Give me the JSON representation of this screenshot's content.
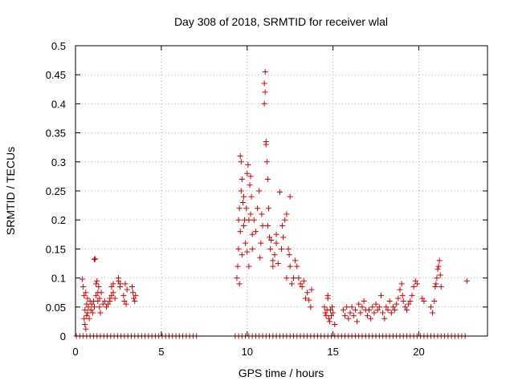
{
  "chart_data": {
    "type": "scatter",
    "title": "Day 308 of 2018, SRMTID for receiver wlal",
    "xlabel": "GPS time / hours",
    "ylabel": "SRMTID / TECUs",
    "xlim": [
      0,
      24
    ],
    "ylim": [
      0,
      0.5
    ],
    "xticks": [
      0,
      5,
      10,
      15,
      20
    ],
    "xtick_labels": [
      "0",
      "5",
      "10",
      "15",
      "20"
    ],
    "yticks": [
      0,
      0.05,
      0.1,
      0.15,
      0.2,
      0.25,
      0.3,
      0.35,
      0.4,
      0.45,
      0.5
    ],
    "ytick_labels": [
      "0",
      "0.05",
      "0.1",
      "0.15",
      "0.2",
      "0.25",
      "0.3",
      "0.35",
      "0.4",
      "0.45",
      "0.5"
    ],
    "grid": true,
    "marker": "+",
    "marker_color": "#dd0000",
    "series": [
      {
        "name": "SRMTID",
        "points": [
          [
            0.4,
            0.098
          ],
          [
            0.45,
            0.085
          ],
          [
            0.5,
            0.07
          ],
          [
            0.5,
            0.03
          ],
          [
            0.55,
            0.045
          ],
          [
            0.55,
            0.02
          ],
          [
            0.6,
            0.075
          ],
          [
            0.6,
            0.012
          ],
          [
            0.65,
            0.055
          ],
          [
            0.65,
            0.035
          ],
          [
            0.7,
            0.04
          ],
          [
            0.7,
            0.065
          ],
          [
            0.75,
            0.05
          ],
          [
            0.8,
            0.03
          ],
          [
            0.85,
            0.06
          ],
          [
            0.9,
            0.045
          ],
          [
            0.95,
            0.055
          ],
          [
            1.0,
            0.04
          ],
          [
            1.05,
            0.06
          ],
          [
            1.1,
            0.05
          ],
          [
            1.1,
            0.132
          ],
          [
            1.15,
            0.133
          ],
          [
            1.2,
            0.09
          ],
          [
            1.2,
            0.07
          ],
          [
            1.25,
            0.095
          ],
          [
            1.3,
            0.075
          ],
          [
            1.3,
            0.06
          ],
          [
            1.35,
            0.085
          ],
          [
            1.4,
            0.05
          ],
          [
            1.4,
            0.065
          ],
          [
            1.45,
            0.04
          ],
          [
            1.5,
            0.075
          ],
          [
            1.6,
            0.055
          ],
          [
            1.7,
            0.06
          ],
          [
            1.8,
            0.05
          ],
          [
            1.9,
            0.055
          ],
          [
            2.0,
            0.065
          ],
          [
            2.0,
            0.06
          ],
          [
            2.1,
            0.085
          ],
          [
            2.1,
            0.07
          ],
          [
            2.2,
            0.09
          ],
          [
            2.2,
            0.075
          ],
          [
            2.3,
            0.065
          ],
          [
            2.5,
            0.1
          ],
          [
            2.5,
            0.095
          ],
          [
            2.6,
            0.085
          ],
          [
            2.6,
            0.09
          ],
          [
            2.8,
            0.07
          ],
          [
            2.85,
            0.06
          ],
          [
            2.9,
            0.09
          ],
          [
            2.95,
            0.055
          ],
          [
            3.0,
            0.08
          ],
          [
            3.3,
            0.085
          ],
          [
            3.35,
            0.075
          ],
          [
            3.4,
            0.065
          ],
          [
            3.45,
            0.06
          ],
          [
            3.5,
            0.07
          ],
          [
            9.4,
            0.1
          ],
          [
            9.45,
            0.12
          ],
          [
            9.5,
            0.15
          ],
          [
            9.5,
            0.2
          ],
          [
            9.55,
            0.22
          ],
          [
            9.55,
            0.09
          ],
          [
            9.6,
            0.31
          ],
          [
            9.6,
            0.18
          ],
          [
            9.65,
            0.25
          ],
          [
            9.65,
            0.3
          ],
          [
            9.7,
            0.27
          ],
          [
            9.7,
            0.14
          ],
          [
            9.75,
            0.23
          ],
          [
            9.8,
            0.24
          ],
          [
            9.8,
            0.19
          ],
          [
            9.85,
            0.2
          ],
          [
            9.9,
            0.16
          ],
          [
            9.95,
            0.22
          ],
          [
            10.0,
            0.145
          ],
          [
            10.0,
            0.28
          ],
          [
            10.05,
            0.295
          ],
          [
            10.1,
            0.12
          ],
          [
            10.1,
            0.2
          ],
          [
            10.15,
            0.26
          ],
          [
            10.2,
            0.275
          ],
          [
            10.2,
            0.21
          ],
          [
            10.25,
            0.24
          ],
          [
            10.3,
            0.15
          ],
          [
            10.3,
            0.175
          ],
          [
            10.4,
            0.2
          ],
          [
            10.5,
            0.18
          ],
          [
            10.6,
            0.22
          ],
          [
            10.7,
            0.25
          ],
          [
            10.75,
            0.135
          ],
          [
            10.8,
            0.16
          ],
          [
            10.85,
            0.21
          ],
          [
            10.9,
            0.19
          ],
          [
            11.0,
            0.435
          ],
          [
            11.0,
            0.4
          ],
          [
            11.05,
            0.42
          ],
          [
            11.05,
            0.455
          ],
          [
            11.1,
            0.335
          ],
          [
            11.1,
            0.33
          ],
          [
            11.15,
            0.3
          ],
          [
            11.2,
            0.27
          ],
          [
            11.2,
            0.19
          ],
          [
            11.25,
            0.22
          ],
          [
            11.3,
            0.17
          ],
          [
            11.35,
            0.15
          ],
          [
            11.4,
            0.165
          ],
          [
            11.5,
            0.13
          ],
          [
            11.5,
            0.12
          ],
          [
            11.6,
            0.14
          ],
          [
            11.7,
            0.16
          ],
          [
            11.7,
            0.175
          ],
          [
            11.8,
            0.125
          ],
          [
            11.9,
            0.248
          ],
          [
            12.0,
            0.15
          ],
          [
            12.05,
            0.19
          ],
          [
            12.1,
            0.17
          ],
          [
            12.2,
            0.2
          ],
          [
            12.3,
            0.21
          ],
          [
            12.3,
            0.1
          ],
          [
            12.4,
            0.15
          ],
          [
            12.45,
            0.14
          ],
          [
            12.5,
            0.24
          ],
          [
            12.5,
            0.12
          ],
          [
            12.6,
            0.09
          ],
          [
            12.7,
            0.1
          ],
          [
            12.8,
            0.13
          ],
          [
            12.9,
            0.12
          ],
          [
            13.0,
            0.1
          ],
          [
            13.1,
            0.09
          ],
          [
            13.2,
            0.085
          ],
          [
            13.3,
            0.095
          ],
          [
            13.4,
            0.065
          ],
          [
            13.5,
            0.075
          ],
          [
            13.6,
            0.062
          ],
          [
            13.7,
            0.05
          ],
          [
            13.75,
            0.08
          ],
          [
            14.5,
            0.05
          ],
          [
            14.55,
            0.04
          ],
          [
            14.6,
            0.035
          ],
          [
            14.65,
            0.045
          ],
          [
            14.7,
            0.065
          ],
          [
            14.7,
            0.07
          ],
          [
            14.75,
            0.03
          ],
          [
            14.8,
            0.025
          ],
          [
            14.85,
            0.045
          ],
          [
            14.9,
            0.035
          ],
          [
            14.95,
            0.05
          ],
          [
            15.0,
            0.04
          ],
          [
            15.1,
            0.02
          ],
          [
            15.6,
            0.045
          ],
          [
            15.7,
            0.035
          ],
          [
            15.8,
            0.05
          ],
          [
            15.9,
            0.03
          ],
          [
            16.0,
            0.04
          ],
          [
            16.1,
            0.05
          ],
          [
            16.2,
            0.035
          ],
          [
            16.3,
            0.045
          ],
          [
            16.4,
            0.025
          ],
          [
            16.5,
            0.055
          ],
          [
            16.6,
            0.04
          ],
          [
            16.7,
            0.05
          ],
          [
            16.8,
            0.06
          ],
          [
            16.9,
            0.045
          ],
          [
            17.0,
            0.035
          ],
          [
            17.1,
            0.045
          ],
          [
            17.2,
            0.03
          ],
          [
            17.3,
            0.05
          ],
          [
            17.4,
            0.04
          ],
          [
            17.5,
            0.055
          ],
          [
            17.6,
            0.045
          ],
          [
            17.7,
            0.05
          ],
          [
            17.8,
            0.07
          ],
          [
            17.9,
            0.04
          ],
          [
            18.0,
            0.03
          ],
          [
            18.1,
            0.05
          ],
          [
            18.2,
            0.045
          ],
          [
            18.3,
            0.06
          ],
          [
            18.4,
            0.04
          ],
          [
            18.5,
            0.05
          ],
          [
            18.6,
            0.045
          ],
          [
            18.7,
            0.055
          ],
          [
            18.8,
            0.065
          ],
          [
            18.9,
            0.08
          ],
          [
            19.0,
            0.09
          ],
          [
            19.05,
            0.07
          ],
          [
            19.1,
            0.06
          ],
          [
            19.2,
            0.05
          ],
          [
            19.3,
            0.045
          ],
          [
            19.4,
            0.055
          ],
          [
            19.5,
            0.06
          ],
          [
            19.6,
            0.07
          ],
          [
            19.7,
            0.085
          ],
          [
            19.8,
            0.095
          ],
          [
            19.9,
            0.09
          ],
          [
            20.2,
            0.065
          ],
          [
            20.3,
            0.06
          ],
          [
            20.7,
            0.05
          ],
          [
            20.8,
            0.04
          ],
          [
            20.9,
            0.06
          ],
          [
            20.95,
            0.085
          ],
          [
            21.0,
            0.09
          ],
          [
            21.05,
            0.1
          ],
          [
            21.1,
            0.115
          ],
          [
            21.15,
            0.12
          ],
          [
            21.2,
            0.13
          ],
          [
            21.25,
            0.105
          ],
          [
            21.3,
            0.085
          ],
          [
            22.8,
            0.095
          ]
        ],
        "zero_hours": [
          0.05,
          0.25,
          0.45,
          0.65,
          0.85,
          1.05,
          1.25,
          1.45,
          1.65,
          1.85,
          2.05,
          2.25,
          2.45,
          2.65,
          2.85,
          3.05,
          3.25,
          3.45,
          3.65,
          3.85,
          4.05,
          4.25,
          4.45,
          4.65,
          4.85,
          5.05,
          5.25,
          5.45,
          5.65,
          5.85,
          6.05,
          6.25,
          6.45,
          6.65,
          6.85,
          7.05,
          9.3,
          9.5,
          9.7,
          9.9,
          10.1,
          10.3,
          10.5,
          10.7,
          10.9,
          11.1,
          11.3,
          11.5,
          11.7,
          11.9,
          12.1,
          12.3,
          12.5,
          12.7,
          12.9,
          13.1,
          13.3,
          13.5,
          13.7,
          13.9,
          14.1,
          14.3,
          14.5,
          14.7,
          14.9,
          15.1,
          15.3,
          15.5,
          15.7,
          15.9,
          16.1,
          16.3,
          16.5,
          16.7,
          16.9,
          17.1,
          17.3,
          17.5,
          17.7,
          17.9,
          18.1,
          18.3,
          18.5,
          18.7,
          18.9,
          19.1,
          19.3,
          19.5,
          19.7,
          19.9,
          20.1,
          20.3,
          20.5,
          20.7,
          20.9,
          21.1,
          21.3,
          21.5,
          21.7,
          21.9,
          22.1,
          22.3,
          22.5,
          22.7
        ]
      }
    ]
  }
}
